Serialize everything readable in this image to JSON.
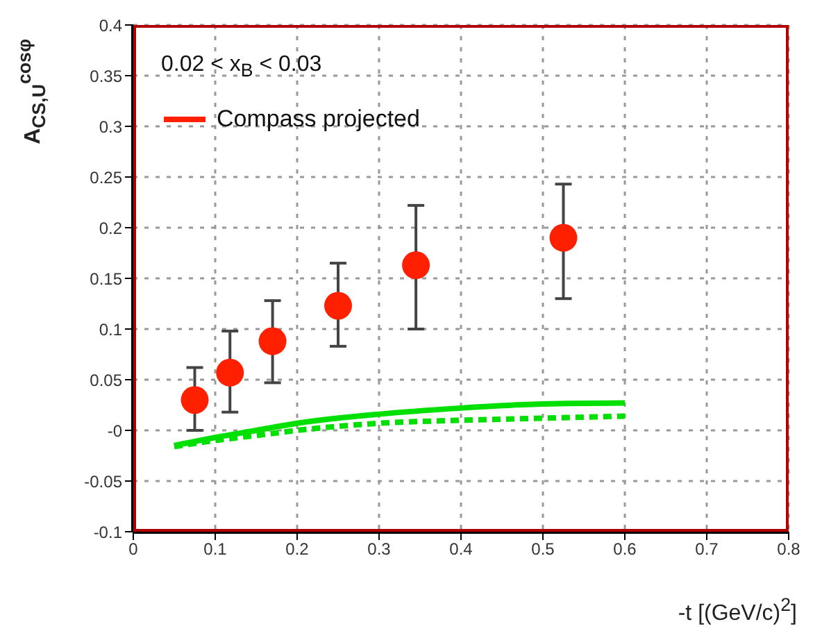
{
  "chart_data": {
    "type": "scatter",
    "xlabel": "-t [(GeV/c)$^{2}$]",
    "ylabel": "A$_{CS,U}$$^{cosφ}$",
    "annotations": [
      "0.02 < x$_{B}$ < 0.03"
    ],
    "xlim": [
      0,
      0.8
    ],
    "xticks": [
      0,
      0.1,
      0.2,
      0.3,
      0.4,
      0.5,
      0.6,
      0.7,
      0.8
    ],
    "ylim": [
      -0.1,
      0.4
    ],
    "yticks": [
      -0.1,
      -0.05,
      {
        "value": 0,
        "label": "-0"
      },
      0.05,
      0.1,
      0.15,
      0.2,
      0.25,
      0.3,
      0.35,
      0.4
    ],
    "grid": true,
    "legend": "top left",
    "series": [
      {
        "name": "Compass projected",
        "marker": "circle",
        "color": "#ff2000",
        "x": [
          0.075,
          0.118,
          0.17,
          0.25,
          0.345,
          0.525
        ],
        "values": [
          0.03,
          0.057,
          0.088,
          0.123,
          0.163,
          0.19
        ],
        "errors": [
          [
            0,
            0.062
          ],
          [
            0.018,
            0.098
          ],
          [
            0.047,
            0.128
          ],
          [
            0.083,
            0.165
          ],
          [
            0.1,
            0.222
          ],
          [
            0.13,
            0.243
          ]
        ]
      },
      {
        "type": "line",
        "marker": "none",
        "line_style": "solid",
        "color": "#00e000",
        "x": [
          0.05,
          0.1,
          0.15,
          0.2,
          0.3,
          0.4,
          0.5,
          0.6
        ],
        "values": [
          -0.015,
          -0.007,
          0,
          0.007,
          0.016,
          0.022,
          0.026,
          0.027
        ]
      },
      {
        "type": "line",
        "marker": "none",
        "line_style": "dashed",
        "color": "#00e000",
        "x": [
          0.05,
          0.1,
          0.15,
          0.2,
          0.3,
          0.4,
          0.5,
          0.6
        ],
        "values": [
          -0.016,
          -0.01,
          -0.005,
          0,
          0.007,
          0.01,
          0.012,
          0.014
        ]
      }
    ]
  }
}
